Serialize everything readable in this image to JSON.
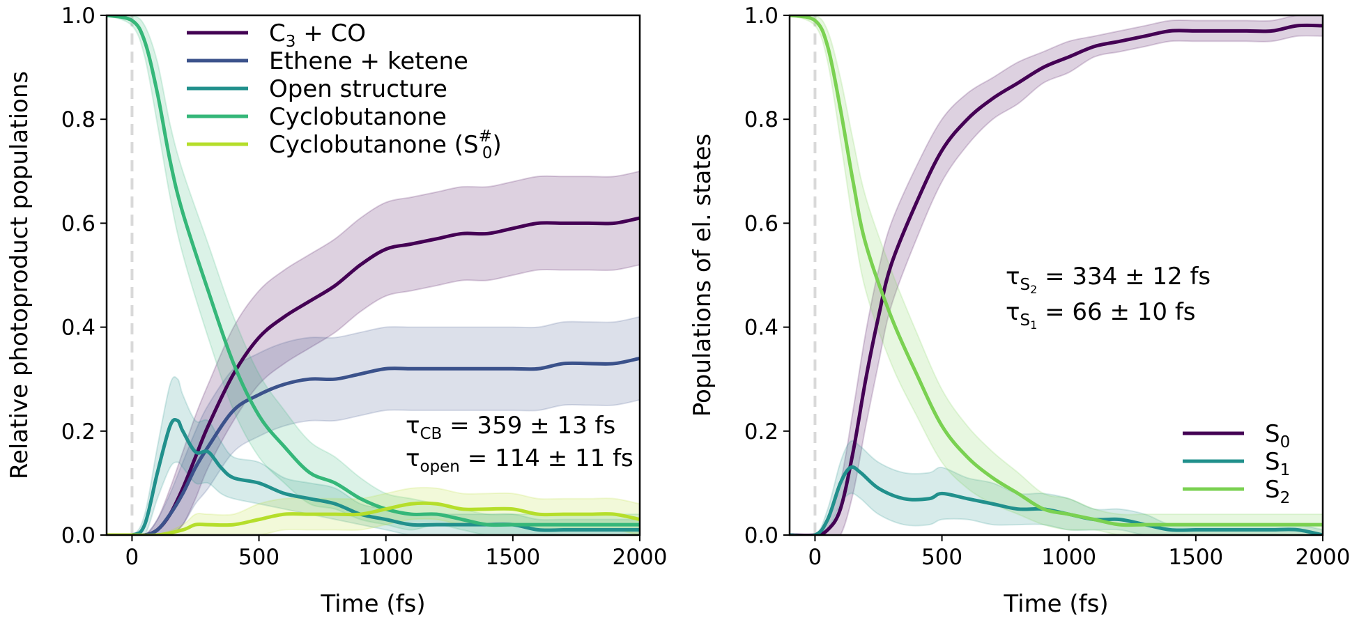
{
  "chart_data": [
    {
      "type": "line",
      "xlabel": "Time (fs)",
      "ylabel": "Relative photoproduct populations",
      "xlim": [
        -100,
        2000
      ],
      "ylim": [
        0,
        1.0
      ],
      "xticks": [
        "0",
        "500",
        "1000",
        "1500",
        "2000"
      ],
      "yticks": [
        "0.0",
        "0.2",
        "0.4",
        "0.6",
        "0.8",
        "1.0"
      ],
      "xtick_values": [
        0,
        500,
        1000,
        1500,
        2000
      ],
      "ytick_values": [
        0,
        0.2,
        0.4,
        0.6,
        0.8,
        1.0
      ],
      "excitation_line_x": 0,
      "legend_position": "top-left",
      "annotations": [
        {
          "symbol": "τ",
          "sub": "CB",
          "text": "= 359 ± 13 fs"
        },
        {
          "symbol": "τ",
          "sub": "open",
          "text": "= 114 ± 11 fs"
        }
      ],
      "series": [
        {
          "name": "C3 + CO",
          "legend": {
            "main": "C",
            "sub": "3",
            "rest": " + CO"
          },
          "color": "#440154",
          "x": [
            -100,
            0,
            50,
            100,
            150,
            200,
            250,
            300,
            400,
            500,
            600,
            700,
            800,
            900,
            1000,
            1100,
            1200,
            1300,
            1400,
            1500,
            1600,
            1700,
            1800,
            1900,
            2000
          ],
          "y": [
            0,
            0,
            0,
            0.01,
            0.04,
            0.09,
            0.15,
            0.21,
            0.31,
            0.38,
            0.42,
            0.45,
            0.48,
            0.52,
            0.55,
            0.56,
            0.57,
            0.58,
            0.58,
            0.59,
            0.6,
            0.6,
            0.6,
            0.6,
            0.61
          ],
          "err": [
            0,
            0,
            0,
            0.02,
            0.05,
            0.07,
            0.08,
            0.08,
            0.09,
            0.09,
            0.09,
            0.09,
            0.09,
            0.09,
            0.09,
            0.09,
            0.09,
            0.09,
            0.09,
            0.09,
            0.09,
            0.09,
            0.09,
            0.09,
            0.09
          ]
        },
        {
          "name": "Ethene + ketene",
          "legend": {
            "main": "Ethene + ketene"
          },
          "color": "#3b528b",
          "x": [
            -100,
            0,
            50,
            100,
            150,
            200,
            250,
            300,
            400,
            500,
            600,
            700,
            800,
            900,
            1000,
            1100,
            1200,
            1300,
            1400,
            1500,
            1600,
            1700,
            1800,
            1900,
            2000
          ],
          "y": [
            0,
            0,
            0,
            0.01,
            0.04,
            0.08,
            0.13,
            0.17,
            0.24,
            0.27,
            0.29,
            0.3,
            0.3,
            0.31,
            0.32,
            0.32,
            0.32,
            0.32,
            0.32,
            0.32,
            0.32,
            0.33,
            0.33,
            0.33,
            0.34
          ],
          "err": [
            0,
            0,
            0,
            0.02,
            0.04,
            0.06,
            0.07,
            0.08,
            0.08,
            0.08,
            0.08,
            0.08,
            0.08,
            0.08,
            0.08,
            0.08,
            0.08,
            0.08,
            0.08,
            0.08,
            0.08,
            0.08,
            0.08,
            0.08,
            0.08
          ]
        },
        {
          "name": "Open structure",
          "legend": {
            "main": "Open structure"
          },
          "color": "#21908c",
          "x": [
            -100,
            0,
            50,
            100,
            150,
            180,
            200,
            250,
            300,
            350,
            400,
            500,
            600,
            700,
            800,
            900,
            1000,
            1100,
            1200,
            1300,
            1400,
            1500,
            1600,
            1700,
            1800,
            1900,
            2000
          ],
          "y": [
            0,
            0,
            0.02,
            0.12,
            0.21,
            0.22,
            0.2,
            0.16,
            0.16,
            0.13,
            0.11,
            0.1,
            0.08,
            0.07,
            0.06,
            0.04,
            0.03,
            0.02,
            0.02,
            0.02,
            0.02,
            0.02,
            0.01,
            0.01,
            0.01,
            0.01,
            0.01
          ],
          "err": [
            0,
            0,
            0.02,
            0.05,
            0.08,
            0.08,
            0.07,
            0.06,
            0.06,
            0.05,
            0.04,
            0.04,
            0.03,
            0.03,
            0.03,
            0.02,
            0.02,
            0.02,
            0.02,
            0.02,
            0.02,
            0.02,
            0.02,
            0.02,
            0.02,
            0.02,
            0.02
          ]
        },
        {
          "name": "Cyclobutanone",
          "legend": {
            "main": "Cyclobutanone"
          },
          "color": "#35b779",
          "x": [
            -100,
            0,
            50,
            100,
            150,
            200,
            300,
            400,
            500,
            600,
            700,
            800,
            900,
            1000,
            1100,
            1200,
            1300,
            1400,
            1500,
            1600,
            1700,
            1800,
            1900,
            2000
          ],
          "y": [
            1.0,
            0.99,
            0.95,
            0.85,
            0.72,
            0.62,
            0.47,
            0.33,
            0.23,
            0.17,
            0.12,
            0.1,
            0.07,
            0.05,
            0.04,
            0.04,
            0.03,
            0.02,
            0.02,
            0.02,
            0.02,
            0.02,
            0.02,
            0.02
          ],
          "err": [
            0,
            0.01,
            0.03,
            0.06,
            0.07,
            0.08,
            0.09,
            0.09,
            0.08,
            0.07,
            0.06,
            0.05,
            0.04,
            0.03,
            0.03,
            0.02,
            0.02,
            0.02,
            0.02,
            0.02,
            0.02,
            0.02,
            0.02,
            0.02
          ]
        },
        {
          "name": "Cyclobutanone (S0#)",
          "legend": {
            "main": "Cyclobutanone (S",
            "sub": "0",
            "sup": "#",
            "rest": ")"
          },
          "color": "#b5de2b",
          "x": [
            -100,
            0,
            100,
            200,
            250,
            300,
            400,
            500,
            600,
            700,
            800,
            900,
            1000,
            1100,
            1200,
            1300,
            1400,
            1500,
            1600,
            1700,
            1800,
            1900,
            2000
          ],
          "y": [
            0,
            0,
            0,
            0.01,
            0.02,
            0.02,
            0.02,
            0.03,
            0.04,
            0.04,
            0.04,
            0.04,
            0.05,
            0.06,
            0.06,
            0.05,
            0.05,
            0.05,
            0.04,
            0.04,
            0.04,
            0.04,
            0.03
          ],
          "err": [
            0,
            0,
            0,
            0.01,
            0.02,
            0.02,
            0.02,
            0.03,
            0.03,
            0.03,
            0.03,
            0.03,
            0.03,
            0.03,
            0.03,
            0.03,
            0.03,
            0.03,
            0.03,
            0.03,
            0.03,
            0.03,
            0.03
          ]
        }
      ]
    },
    {
      "type": "line",
      "xlabel": "Time (fs)",
      "ylabel": "Populations of el. states",
      "xlim": [
        -100,
        2000
      ],
      "ylim": [
        0,
        1.0
      ],
      "xticks": [
        "0",
        "500",
        "1000",
        "1500",
        "2000"
      ],
      "yticks": [
        "0.0",
        "0.2",
        "0.4",
        "0.6",
        "0.8",
        "1.0"
      ],
      "xtick_values": [
        0,
        500,
        1000,
        1500,
        2000
      ],
      "ytick_values": [
        0,
        0.2,
        0.4,
        0.6,
        0.8,
        1.0
      ],
      "excitation_line_x": 0,
      "legend_position": "lower-right",
      "annotations": [
        {
          "symbol": "τ",
          "sub": "S",
          "subsub": "2",
          "text": "= 334 ± 12 fs"
        },
        {
          "symbol": "τ",
          "sub": "S",
          "subsub": "1",
          "text": "= 66 ± 10 fs"
        }
      ],
      "series": [
        {
          "name": "S0",
          "legend": {
            "main": "S",
            "sub": "0"
          },
          "color": "#440154",
          "x": [
            -100,
            0,
            50,
            100,
            150,
            200,
            250,
            300,
            400,
            500,
            600,
            700,
            800,
            900,
            1000,
            1100,
            1200,
            1300,
            1400,
            1500,
            1600,
            1700,
            1800,
            1900,
            2000
          ],
          "y": [
            0,
            0,
            0.01,
            0.05,
            0.16,
            0.3,
            0.42,
            0.52,
            0.64,
            0.74,
            0.8,
            0.84,
            0.87,
            0.9,
            0.92,
            0.94,
            0.95,
            0.96,
            0.97,
            0.97,
            0.97,
            0.97,
            0.97,
            0.98,
            0.98
          ],
          "err": [
            0,
            0,
            0.02,
            0.05,
            0.08,
            0.09,
            0.09,
            0.08,
            0.07,
            0.06,
            0.05,
            0.04,
            0.04,
            0.03,
            0.03,
            0.02,
            0.02,
            0.02,
            0.02,
            0.02,
            0.02,
            0.02,
            0.02,
            0.02,
            0.02
          ]
        },
        {
          "name": "S1",
          "legend": {
            "main": "S",
            "sub": "1"
          },
          "color": "#21908c",
          "x": [
            -100,
            0,
            50,
            100,
            140,
            180,
            250,
            350,
            450,
            500,
            600,
            700,
            800,
            900,
            1000,
            1100,
            1200,
            1300,
            1400,
            1500,
            1600,
            1700,
            1800,
            1900,
            2000
          ],
          "y": [
            0,
            0,
            0.03,
            0.1,
            0.13,
            0.12,
            0.09,
            0.07,
            0.07,
            0.08,
            0.07,
            0.06,
            0.05,
            0.05,
            0.04,
            0.03,
            0.03,
            0.02,
            0.01,
            0.01,
            0.01,
            0.01,
            0.01,
            0.01,
            0.0
          ],
          "err": [
            0,
            0,
            0.02,
            0.04,
            0.05,
            0.05,
            0.05,
            0.05,
            0.05,
            0.05,
            0.04,
            0.04,
            0.03,
            0.03,
            0.03,
            0.02,
            0.02,
            0.02,
            0.01,
            0.01,
            0.01,
            0.01,
            0.01,
            0.01,
            0.01
          ]
        },
        {
          "name": "S2",
          "legend": {
            "main": "S",
            "sub": "2"
          },
          "color": "#7ad151",
          "x": [
            -100,
            0,
            50,
            100,
            150,
            200,
            300,
            400,
            500,
            600,
            700,
            800,
            900,
            1000,
            1100,
            1200,
            1300,
            1400,
            1500,
            1600,
            1700,
            1800,
            1900,
            2000
          ],
          "y": [
            1.0,
            0.99,
            0.94,
            0.82,
            0.68,
            0.56,
            0.42,
            0.31,
            0.21,
            0.15,
            0.11,
            0.08,
            0.05,
            0.04,
            0.03,
            0.02,
            0.02,
            0.02,
            0.02,
            0.02,
            0.02,
            0.02,
            0.02,
            0.02
          ],
          "err": [
            0,
            0.01,
            0.03,
            0.06,
            0.08,
            0.09,
            0.09,
            0.08,
            0.07,
            0.06,
            0.05,
            0.04,
            0.03,
            0.03,
            0.02,
            0.02,
            0.02,
            0.02,
            0.02,
            0.02,
            0.02,
            0.02,
            0.02,
            0.02
          ]
        }
      ]
    }
  ]
}
